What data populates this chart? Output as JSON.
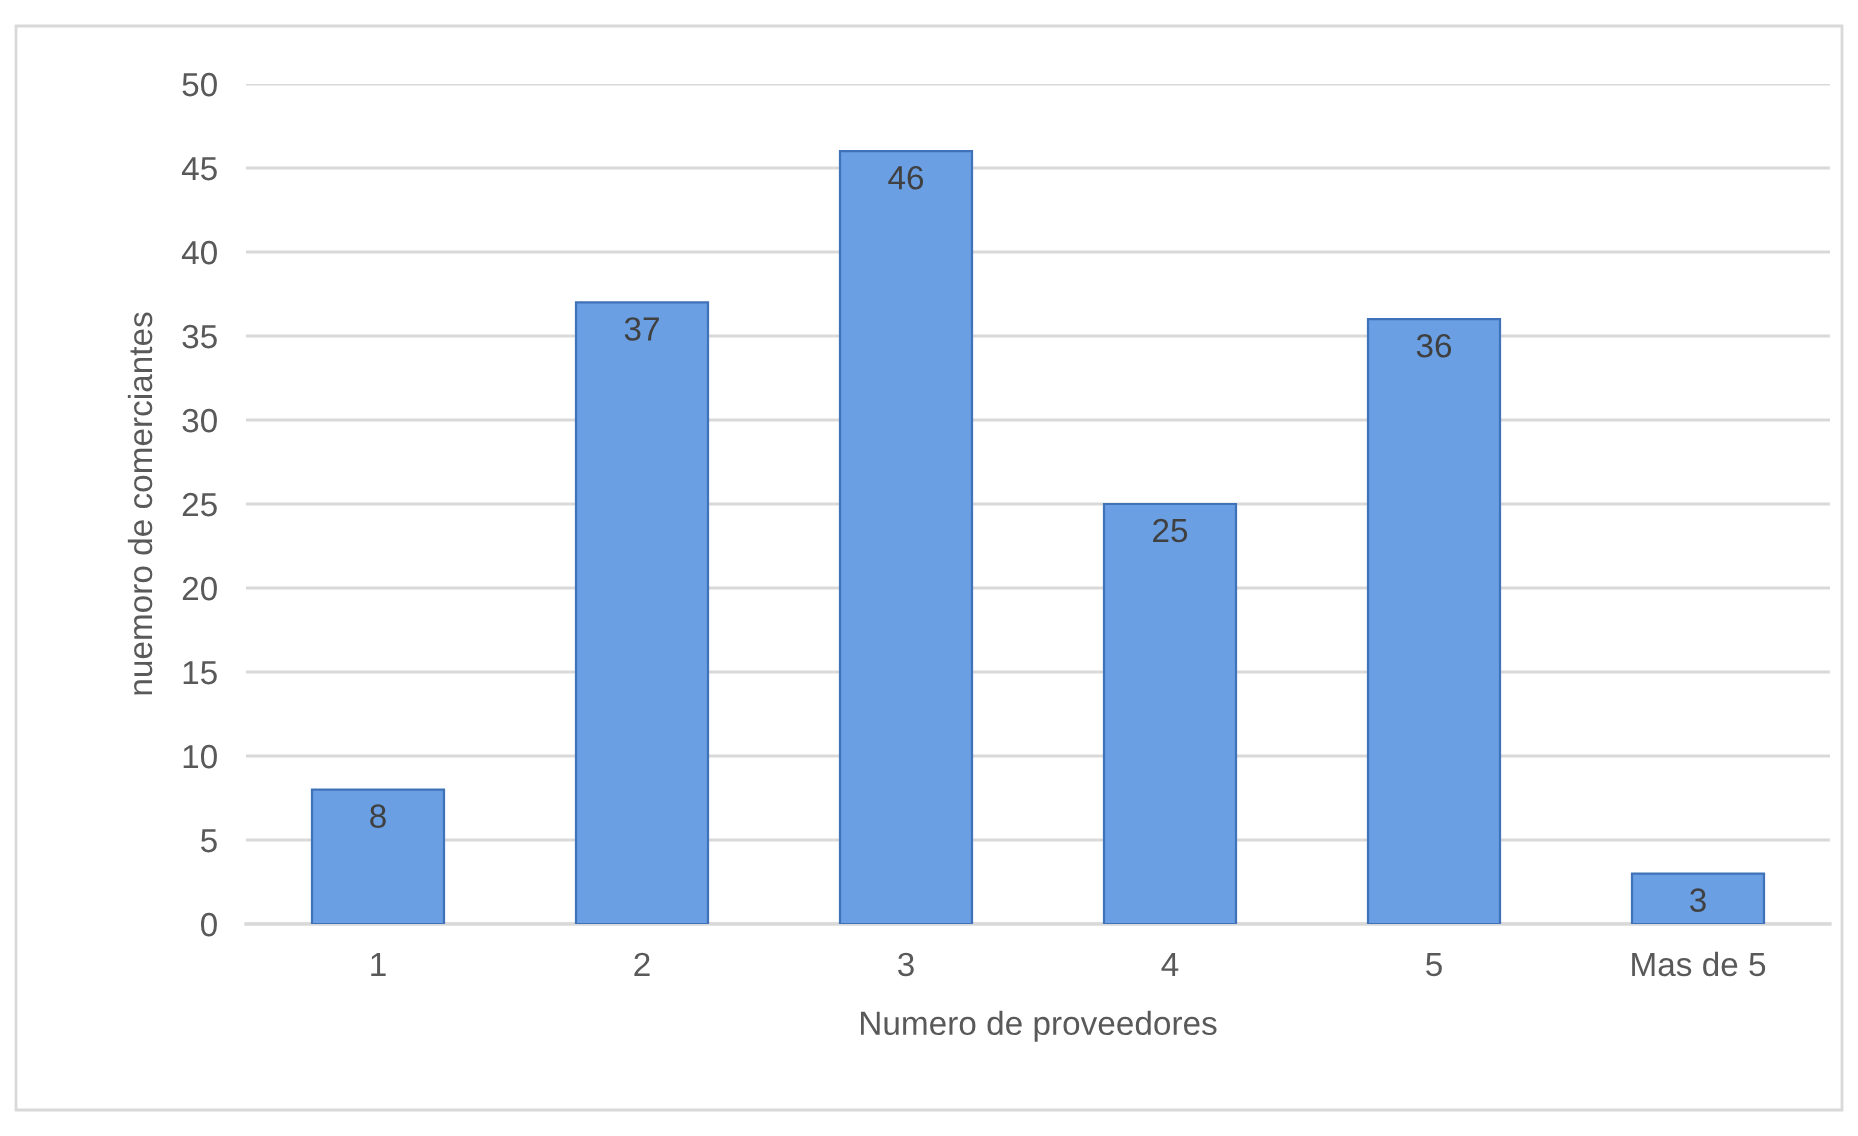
{
  "chart_data": {
    "type": "bar",
    "xlabel": "Numero de proveedores",
    "ylabel": "nuemoro de comerciantes",
    "categories": [
      "1",
      "2",
      "3",
      "4",
      "5",
      "Mas de 5"
    ],
    "values": [
      8,
      37,
      46,
      25,
      36,
      3
    ],
    "color": "#6a9fe3",
    "ylim": [
      0,
      50
    ],
    "yticks": [
      0,
      5,
      10,
      15,
      20,
      25,
      30,
      35,
      40,
      45,
      50
    ],
    "grid": "y",
    "data_labels": true
  }
}
